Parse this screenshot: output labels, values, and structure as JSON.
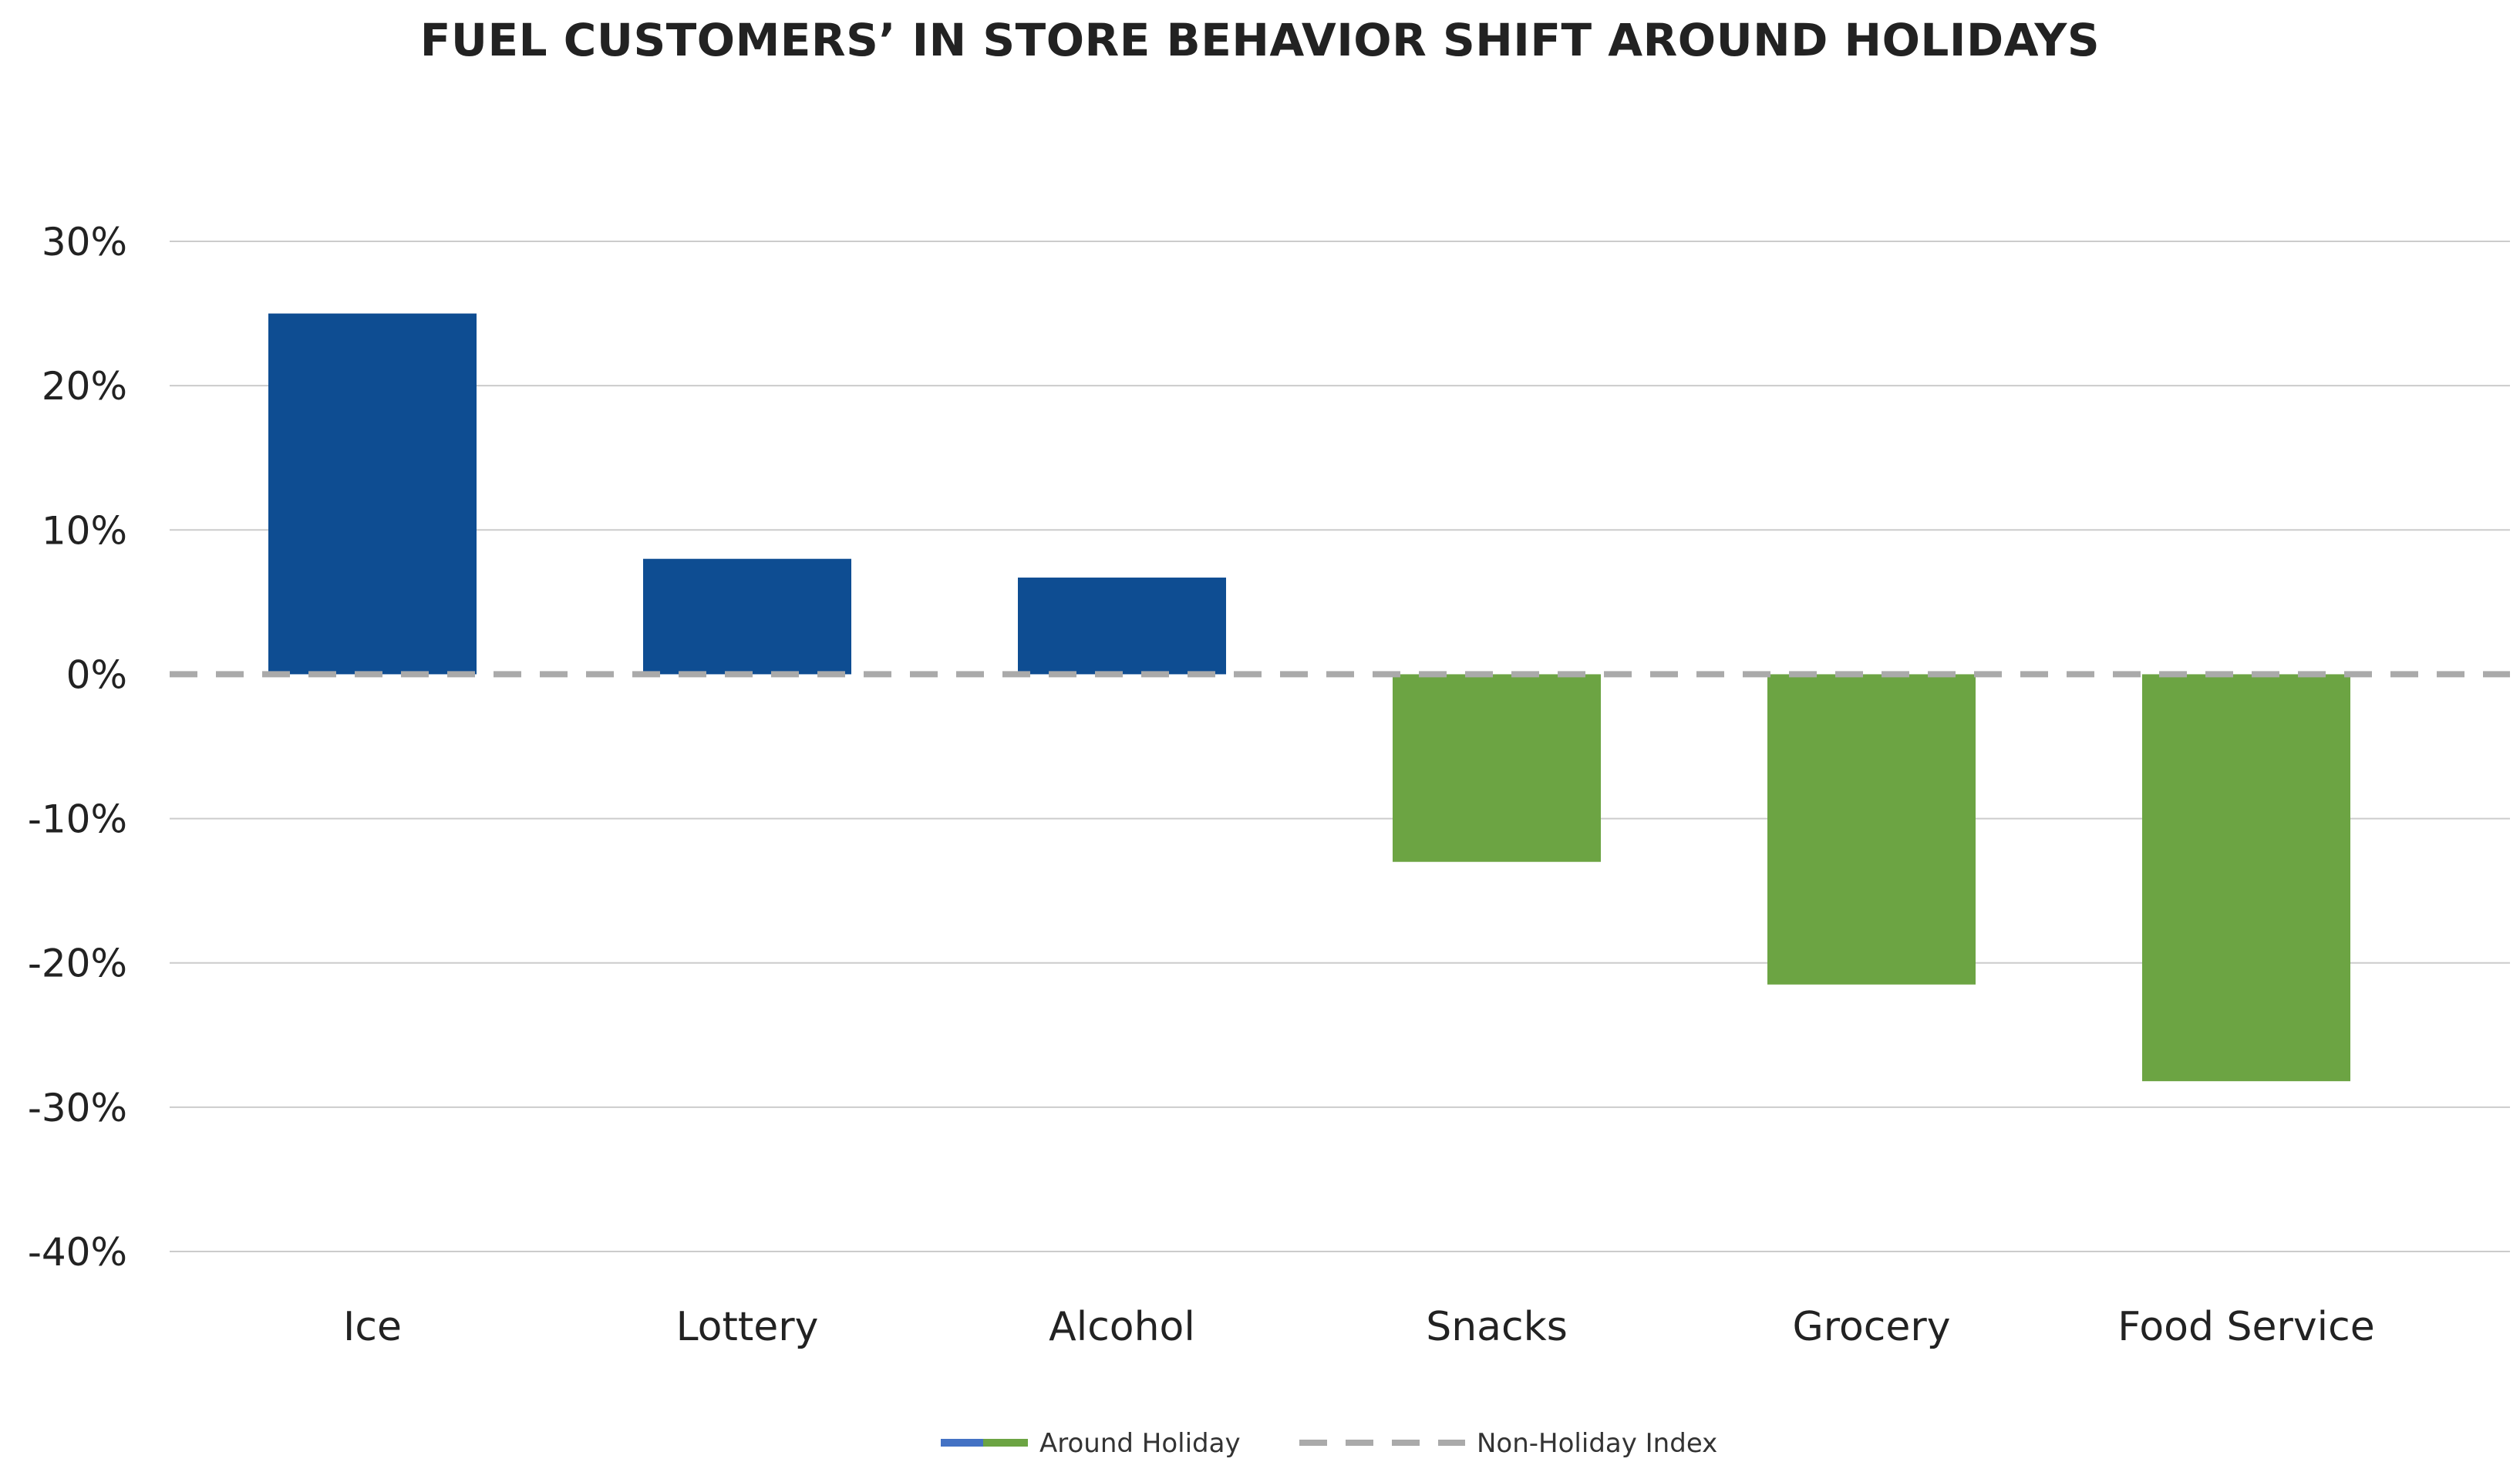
{
  "chart_data": {
    "type": "bar",
    "title": "FUEL CUSTOMERS’ IN STORE BEHAVIOR SHIFT AROUND HOLIDAYS",
    "xlabel": "",
    "ylabel": "",
    "categories": [
      "Ice",
      "Lottery",
      "Alcohol",
      "Snacks",
      "Grocery",
      "Food Service"
    ],
    "series": [
      {
        "name": "Around Holiday",
        "values": [
          25,
          8,
          6.7,
          -13,
          -21.5,
          -28.2
        ]
      }
    ],
    "reference_line": {
      "name": "Non-Holiday Index",
      "value": 0,
      "style": "dashed",
      "color": "#AAAAAA"
    },
    "ylim": [
      -40,
      30
    ],
    "yticks": [
      30,
      20,
      10,
      0,
      -10,
      -20,
      -30,
      -40
    ],
    "ytick_labels": [
      "30%",
      "20%",
      "10%",
      "0%",
      "-10%",
      "-20%",
      "-30%",
      "-40%"
    ],
    "grid": true,
    "legend_position": "bottom-center",
    "colors": {
      "positive": "#0E4D92",
      "negative": "#6CA443",
      "grid": "#CCCCCC",
      "reference": "#AAAAAA",
      "legend_blue": "#4472C4"
    }
  }
}
